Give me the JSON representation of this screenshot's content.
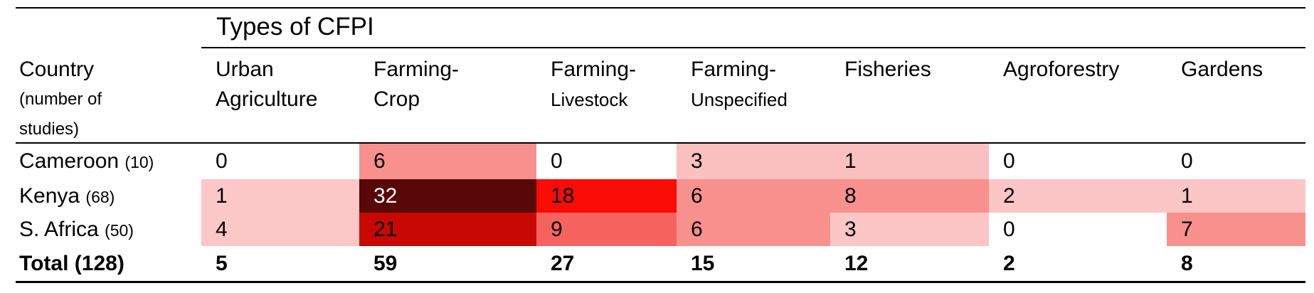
{
  "table": {
    "group_header": "Types of CFPI",
    "country_header": {
      "line1": "Country",
      "line2": "(number of",
      "line3": "studies)"
    },
    "columns": [
      {
        "label": "Urban",
        "sublabel": "Agriculture"
      },
      {
        "label": "Farming-",
        "sublabel": "Crop"
      },
      {
        "label": "Farming-",
        "sublabel": "Livestock"
      },
      {
        "label": "Farming-",
        "sublabel": "Unspecified"
      },
      {
        "label": "Fisheries",
        "sublabel": ""
      },
      {
        "label": "Agroforestry",
        "sublabel": ""
      },
      {
        "label": "Gardens",
        "sublabel": ""
      }
    ],
    "rows": [
      {
        "country": "Cameroon",
        "studies": "(10)",
        "values": [
          0,
          6,
          0,
          3,
          1,
          0,
          0
        ],
        "cell_styles": [
          "background:#FFFFFF",
          "background:#F8918D",
          "background:#FFFFFF",
          "background:#FAC0BF",
          "background:#FAC0BF",
          "background:#FFFFFF",
          "background:#FFFFFF"
        ]
      },
      {
        "country": "Kenya",
        "studies": "(68)",
        "values": [
          1,
          32,
          18,
          6,
          8,
          2,
          1
        ],
        "cell_styles": [
          "background:#FCC8C7",
          "background:#570807;color:#FFFFFF",
          "background:#FA0B05",
          "background:#F8918D",
          "background:#F8918D",
          "background:#FBC6C5",
          "background:#FBC6C5"
        ]
      },
      {
        "country": "S. Africa",
        "studies": "(50)",
        "values": [
          4,
          21,
          9,
          6,
          3,
          0,
          7
        ],
        "cell_styles": [
          "background:#FCC8C7",
          "background:#C80805",
          "background:#F6635E",
          "background:#F8918D",
          "background:#FBC6C5",
          "background:#FFFFFF",
          "background:#F8908C"
        ]
      },
      {
        "country": "Total (128)",
        "studies": "",
        "values": [
          5,
          59,
          27,
          15,
          12,
          2,
          8
        ],
        "cell_styles": [
          "",
          "",
          "",
          "",
          "",
          "",
          ""
        ]
      }
    ]
  },
  "colors": {
    "border": "#000000",
    "text": "#000000",
    "heat_min": "#FFFFFF",
    "heat_low": "#FBC6C5",
    "heat_mid": "#F8918D",
    "heat_high": "#FA0B05",
    "heat_higher": "#C80805",
    "heat_max": "#570807"
  },
  "chart_data": {
    "type": "heatmap",
    "title": "Types of CFPI",
    "row_axis_label": "Country (number of studies)",
    "categories": [
      "Urban Agriculture",
      "Farming-Crop",
      "Farming-Livestock",
      "Farming-Unspecified",
      "Fisheries",
      "Agroforestry",
      "Gardens"
    ],
    "rows": [
      "Cameroon (10)",
      "Kenya (68)",
      "S. Africa (50)",
      "Total (128)"
    ],
    "values": [
      [
        0,
        6,
        0,
        3,
        1,
        0,
        0
      ],
      [
        1,
        32,
        18,
        6,
        8,
        2,
        1
      ],
      [
        4,
        21,
        9,
        6,
        3,
        0,
        7
      ],
      [
        5,
        59,
        27,
        15,
        12,
        2,
        8
      ]
    ],
    "notes": "Total row is unshaded; cell shading intensity scales with value from white (0) to dark maroon (32)",
    "color_scale": [
      "#FFFFFF",
      "#FBC6C5",
      "#F8918D",
      "#F6635E",
      "#FA0B05",
      "#C80805",
      "#570807"
    ]
  }
}
